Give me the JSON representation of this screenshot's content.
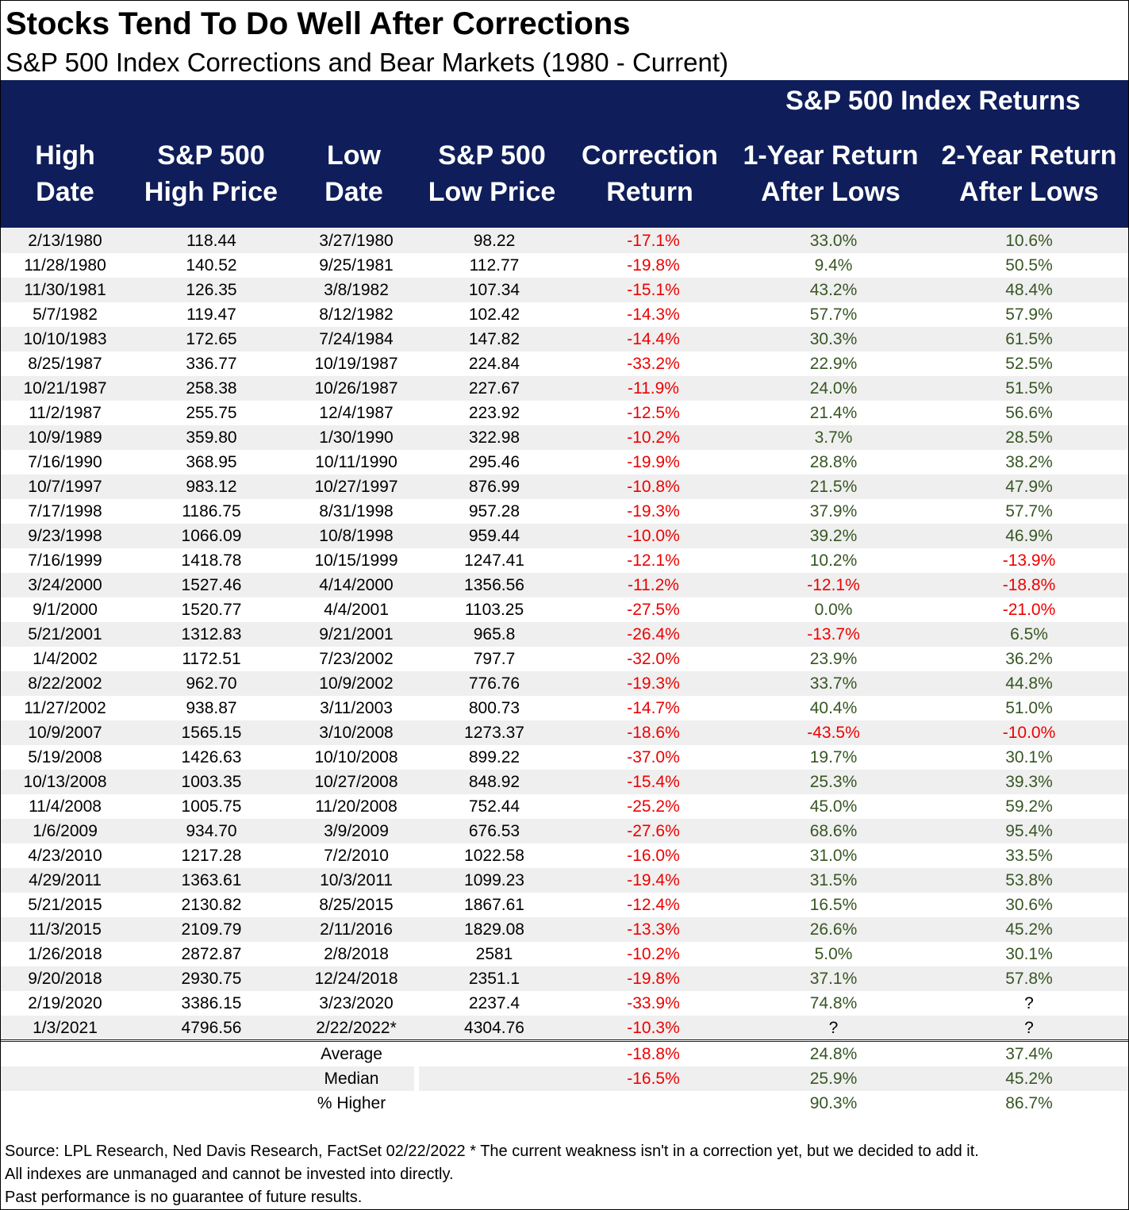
{
  "title": "Stocks Tend To Do Well After Corrections",
  "subtitle": "S&P 500 Index Corrections and Bear Markets (1980 - Current)",
  "header": {
    "group_label": "S&P 500 Index Returns",
    "columns": [
      {
        "line1": "High",
        "line2": "Date"
      },
      {
        "line1": "S&P 500",
        "line2": "High Price"
      },
      {
        "line1": "Low",
        "line2": "Date"
      },
      {
        "line1": "S&P 500",
        "line2": "Low Price"
      },
      {
        "line1": "Correction",
        "line2": "Return"
      },
      {
        "line1": "1-Year Return",
        "line2": "After Lows"
      },
      {
        "line1": "2-Year Return",
        "line2": "After Lows"
      }
    ]
  },
  "colors": {
    "header_bg": "#0f1e5a",
    "negative": "#ee0000",
    "positive": "#375623",
    "stripe": "#efefef"
  },
  "chart_data": {
    "type": "table",
    "title": "Stocks Tend To Do Well After Corrections",
    "subtitle": "S&P 500 Index Corrections and Bear Markets (1980 - Current)",
    "columns": [
      "High Date",
      "S&P 500 High Price",
      "Low Date",
      "S&P 500 Low Price",
      "Correction Return",
      "1-Year Return After Lows",
      "2-Year Return After Lows"
    ],
    "rows": [
      [
        "2/13/1980",
        "118.44",
        "3/27/1980",
        "98.22",
        "-17.1%",
        "33.0%",
        "10.6%"
      ],
      [
        "11/28/1980",
        "140.52",
        "9/25/1981",
        "112.77",
        "-19.8%",
        "9.4%",
        "50.5%"
      ],
      [
        "11/30/1981",
        "126.35",
        "3/8/1982",
        "107.34",
        "-15.1%",
        "43.2%",
        "48.4%"
      ],
      [
        "5/7/1982",
        "119.47",
        "8/12/1982",
        "102.42",
        "-14.3%",
        "57.7%",
        "57.9%"
      ],
      [
        "10/10/1983",
        "172.65",
        "7/24/1984",
        "147.82",
        "-14.4%",
        "30.3%",
        "61.5%"
      ],
      [
        "8/25/1987",
        "336.77",
        "10/19/1987",
        "224.84",
        "-33.2%",
        "22.9%",
        "52.5%"
      ],
      [
        "10/21/1987",
        "258.38",
        "10/26/1987",
        "227.67",
        "-11.9%",
        "24.0%",
        "51.5%"
      ],
      [
        "11/2/1987",
        "255.75",
        "12/4/1987",
        "223.92",
        "-12.5%",
        "21.4%",
        "56.6%"
      ],
      [
        "10/9/1989",
        "359.80",
        "1/30/1990",
        "322.98",
        "-10.2%",
        "3.7%",
        "28.5%"
      ],
      [
        "7/16/1990",
        "368.95",
        "10/11/1990",
        "295.46",
        "-19.9%",
        "28.8%",
        "38.2%"
      ],
      [
        "10/7/1997",
        "983.12",
        "10/27/1997",
        "876.99",
        "-10.8%",
        "21.5%",
        "47.9%"
      ],
      [
        "7/17/1998",
        "1186.75",
        "8/31/1998",
        "957.28",
        "-19.3%",
        "37.9%",
        "57.7%"
      ],
      [
        "9/23/1998",
        "1066.09",
        "10/8/1998",
        "959.44",
        "-10.0%",
        "39.2%",
        "46.9%"
      ],
      [
        "7/16/1999",
        "1418.78",
        "10/15/1999",
        "1247.41",
        "-12.1%",
        "10.2%",
        "-13.9%"
      ],
      [
        "3/24/2000",
        "1527.46",
        "4/14/2000",
        "1356.56",
        "-11.2%",
        "-12.1%",
        "-18.8%"
      ],
      [
        "9/1/2000",
        "1520.77",
        "4/4/2001",
        "1103.25",
        "-27.5%",
        "0.0%",
        "-21.0%"
      ],
      [
        "5/21/2001",
        "1312.83",
        "9/21/2001",
        "965.8",
        "-26.4%",
        "-13.7%",
        "6.5%"
      ],
      [
        "1/4/2002",
        "1172.51",
        "7/23/2002",
        "797.7",
        "-32.0%",
        "23.9%",
        "36.2%"
      ],
      [
        "8/22/2002",
        "962.70",
        "10/9/2002",
        "776.76",
        "-19.3%",
        "33.7%",
        "44.8%"
      ],
      [
        "11/27/2002",
        "938.87",
        "3/11/2003",
        "800.73",
        "-14.7%",
        "40.4%",
        "51.0%"
      ],
      [
        "10/9/2007",
        "1565.15",
        "3/10/2008",
        "1273.37",
        "-18.6%",
        "-43.5%",
        "-10.0%"
      ],
      [
        "5/19/2008",
        "1426.63",
        "10/10/2008",
        "899.22",
        "-37.0%",
        "19.7%",
        "30.1%"
      ],
      [
        "10/13/2008",
        "1003.35",
        "10/27/2008",
        "848.92",
        "-15.4%",
        "25.3%",
        "39.3%"
      ],
      [
        "11/4/2008",
        "1005.75",
        "11/20/2008",
        "752.44",
        "-25.2%",
        "45.0%",
        "59.2%"
      ],
      [
        "1/6/2009",
        "934.70",
        "3/9/2009",
        "676.53",
        "-27.6%",
        "68.6%",
        "95.4%"
      ],
      [
        "4/23/2010",
        "1217.28",
        "7/2/2010",
        "1022.58",
        "-16.0%",
        "31.0%",
        "33.5%"
      ],
      [
        "4/29/2011",
        "1363.61",
        "10/3/2011",
        "1099.23",
        "-19.4%",
        "31.5%",
        "53.8%"
      ],
      [
        "5/21/2015",
        "2130.82",
        "8/25/2015",
        "1867.61",
        "-12.4%",
        "16.5%",
        "30.6%"
      ],
      [
        "11/3/2015",
        "2109.79",
        "2/11/2016",
        "1829.08",
        "-13.3%",
        "26.6%",
        "45.2%"
      ],
      [
        "1/26/2018",
        "2872.87",
        "2/8/2018",
        "2581",
        "-10.2%",
        "5.0%",
        "30.1%"
      ],
      [
        "9/20/2018",
        "2930.75",
        "12/24/2018",
        "2351.1",
        "-19.8%",
        "37.1%",
        "57.8%"
      ],
      [
        "2/19/2020",
        "3386.15",
        "3/23/2020",
        "2237.4",
        "-33.9%",
        "74.8%",
        "?"
      ],
      [
        "1/3/2021",
        "4796.56",
        "2/22/2022*",
        "4304.76",
        "-10.3%",
        "?",
        "?"
      ]
    ],
    "summary": [
      {
        "label": "Average",
        "correction": "-18.8%",
        "one_year": "24.8%",
        "two_year": "37.4%"
      },
      {
        "label": "Median",
        "correction": "-16.5%",
        "one_year": "25.9%",
        "two_year": "45.2%"
      },
      {
        "label": "% Higher",
        "correction": "",
        "one_year": "90.3%",
        "two_year": "86.7%"
      }
    ]
  },
  "footer": {
    "line1": "Source: LPL Research, Ned Davis Research, FactSet 02/22/2022   * The current weakness isn't in a correction yet, but we decided to add it.",
    "line2": "All indexes are unmanaged and cannot be invested into directly.",
    "line3": "Past performance is no guarantee of future results."
  }
}
